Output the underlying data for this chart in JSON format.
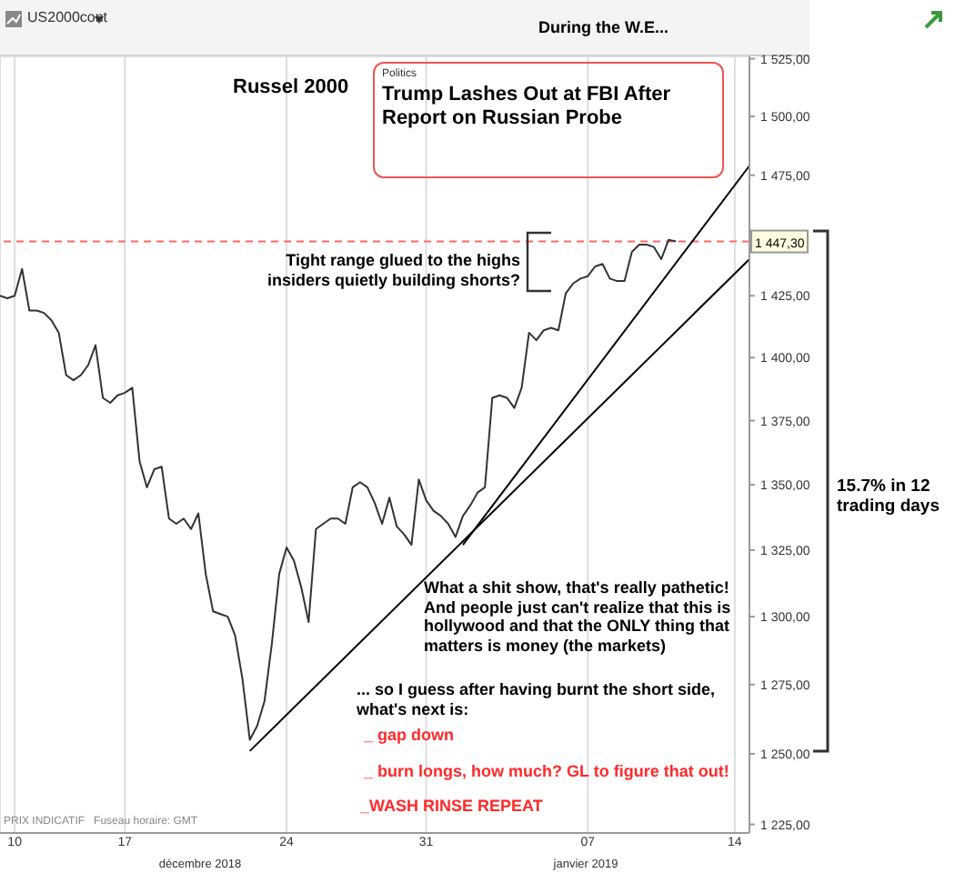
{
  "chart_data": {
    "type": "line",
    "title": "US2000cont",
    "categories": [
      null,
      null,
      "10",
      null,
      null,
      null,
      null,
      null,
      null,
      null,
      null,
      null,
      null,
      null,
      null,
      null,
      null,
      "17",
      null,
      null,
      null,
      null,
      null,
      null,
      null,
      null,
      null,
      null,
      null,
      null,
      null,
      null,
      null,
      null,
      null,
      null,
      null,
      null,
      null,
      "24",
      null,
      null,
      null,
      null,
      null,
      null,
      null,
      null,
      null,
      null,
      null,
      null,
      null,
      null,
      null,
      null,
      null,
      null,
      "31",
      null,
      null,
      null,
      null,
      null,
      null,
      null,
      null,
      null,
      null,
      null,
      null,
      null,
      null,
      null,
      null,
      null,
      null,
      null,
      null,
      null,
      "07",
      null,
      null,
      null,
      null,
      null,
      null,
      null,
      null,
      null,
      null,
      null,
      null,
      null,
      null,
      null,
      null,
      null,
      null,
      null,
      "14",
      null,
      null
    ],
    "series": [
      {
        "color": "#333333",
        "values": [
          1425,
          1424,
          1425,
          1436,
          1419,
          1419,
          1418,
          1415,
          1410,
          1393,
          1391,
          1393,
          1397,
          1405,
          1384,
          1382,
          1385,
          1386,
          1388,
          1359,
          1349,
          1356,
          1357,
          1337,
          1335,
          1337,
          1333,
          1339,
          1316,
          1302,
          1301,
          1300,
          1293,
          1277,
          1255,
          1260,
          1269,
          1290,
          1316,
          1326,
          1321,
          1311,
          1298,
          1333,
          1335,
          1337,
          1337,
          1335,
          1349,
          1351,
          1349,
          1343,
          1335,
          1345,
          1334,
          1331,
          1327,
          1352,
          1344,
          1340,
          1338,
          1335,
          1330,
          1338,
          1342,
          1347,
          1349,
          1384,
          1385,
          1384,
          1380,
          1388,
          1410,
          1407,
          1411,
          1412,
          1411,
          1426,
          1430,
          1432,
          1433,
          1437,
          1438,
          1432,
          1431,
          1431,
          1443,
          1446,
          1446,
          1445,
          1440,
          1448,
          1447.3,
          null,
          null,
          null,
          null,
          null,
          null,
          null,
          null,
          null,
          null
        ]
      },
      {
        "color": "#000000",
        "values": [
          null,
          null,
          null,
          null,
          null,
          null,
          null,
          null,
          null,
          null,
          null,
          null,
          null,
          null,
          null,
          null,
          null,
          null,
          null,
          null,
          null,
          null,
          null,
          null,
          null,
          null,
          null,
          null,
          null,
          null,
          null,
          null,
          null,
          null,
          1251,
          null,
          null,
          null,
          null,
          null,
          null,
          null,
          null,
          null,
          null,
          null,
          null,
          null,
          null,
          null,
          null,
          null,
          null,
          null,
          null,
          null,
          null,
          null,
          null,
          null,
          null,
          null,
          null,
          null,
          null,
          null,
          null,
          null,
          null,
          null,
          null,
          null,
          null,
          null,
          null,
          null,
          null,
          null,
          null,
          null,
          null,
          null,
          null,
          null,
          null,
          null,
          null,
          null,
          null,
          null,
          null,
          null,
          null,
          null,
          null,
          null,
          null,
          null,
          null,
          null,
          null,
          null,
          1440
        ]
      },
      {
        "color": "#000000",
        "values": [
          null,
          null,
          null,
          null,
          null,
          null,
          null,
          null,
          null,
          null,
          null,
          null,
          null,
          null,
          null,
          null,
          null,
          null,
          null,
          null,
          null,
          null,
          null,
          null,
          null,
          null,
          null,
          null,
          null,
          null,
          null,
          null,
          null,
          null,
          null,
          null,
          null,
          null,
          null,
          null,
          null,
          null,
          null,
          null,
          null,
          null,
          null,
          null,
          null,
          null,
          null,
          null,
          null,
          null,
          null,
          null,
          null,
          null,
          null,
          null,
          null,
          null,
          null,
          1327,
          null,
          null,
          null,
          null,
          null,
          null,
          null,
          null,
          null,
          null,
          null,
          null,
          null,
          null,
          null,
          null,
          null,
          null,
          null,
          null,
          null,
          null,
          null,
          null,
          null,
          null,
          null,
          null,
          null,
          null,
          null,
          null,
          null,
          null,
          null,
          null,
          null,
          null,
          1479
        ]
      }
    ],
    "ylim": [
      1222,
      1526
    ],
    "log": true,
    "yticks": [
      {
        "value": 1225,
        "label": "1 225,00"
      },
      {
        "value": 1250,
        "label": "1 250,00"
      },
      {
        "value": 1275,
        "label": "1 275,00"
      },
      {
        "value": 1300,
        "label": "1 300,00"
      },
      {
        "value": 1325,
        "label": "1 325,00"
      },
      {
        "value": 1350,
        "label": "1 350,00"
      },
      {
        "value": 1375,
        "label": "1 375,00"
      },
      {
        "value": 1400,
        "label": "1 400,00"
      },
      {
        "value": 1425,
        "label": "1 425,00"
      },
      {
        "value": 1475,
        "label": "1 475,00"
      },
      {
        "value": 1500,
        "label": "1 500,00"
      },
      {
        "value": 1525,
        "label": "1 525,00"
      }
    ],
    "ref_lines": [
      {
        "axis": "y",
        "value": 1447.3,
        "label": "1 447,30",
        "color": "#ff6666",
        "line_style": "dashed"
      }
    ],
    "grid": true,
    "marker": "none",
    "annotations": [
      "Russel 2000",
      "During the W.E...",
      "Politics",
      "Trump Lashes Out at FBI After Report on Russian Probe",
      "Tight range glued to the highs insiders quietly building shorts?",
      "15.7% in 12 trading days",
      "What a shit show, that's really pathetic! And people just can't realize that this is hollywood and that the ONLY thing that matters is money (the markets)",
      "... so I guess after having burnt the short side, what's next is:",
      "_ gap down",
      "_ burn longs, how much? GL to figure that out!",
      "_WASH RINSE REPEAT",
      "PRIX INDICATIF   Fuseau horaire: GMT",
      "décembre 2018",
      "janvier 2019"
    ]
  }
}
